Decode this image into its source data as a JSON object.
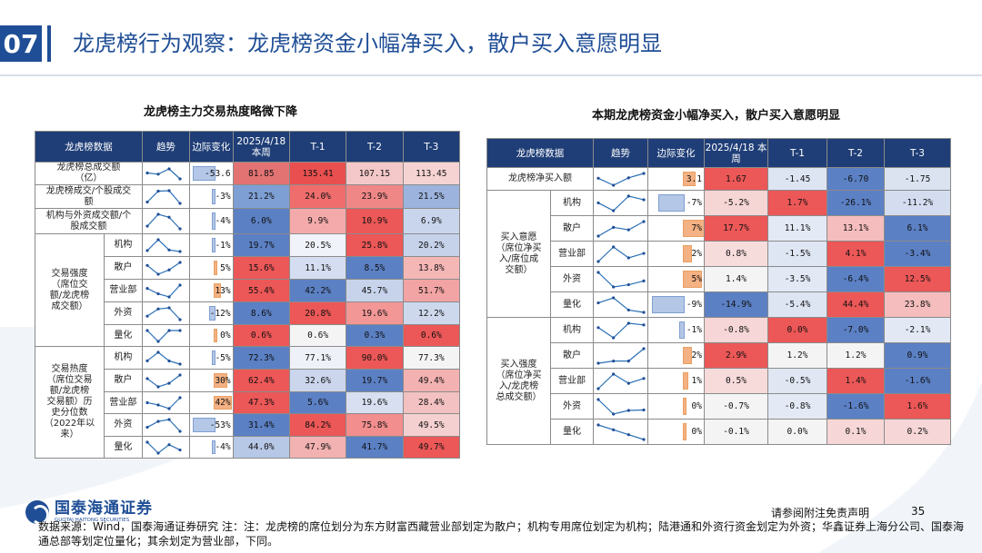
{
  "header": {
    "section_number": "07",
    "title": "龙虎榜行为观察：龙虎榜资金小幅净买入，散户买入意愿明显"
  },
  "colors": {
    "navy": "#1f3e77",
    "brand_blue": "#1f4e96"
  },
  "left": {
    "title": "龙虎榜主力交易热度略微下降",
    "headers": [
      "龙虎榜数据",
      "趋势",
      "边际变化",
      "2025/4/18\n本周",
      "T-1",
      "T-2",
      "T-3"
    ],
    "groups": [
      {
        "label": "交易强度\n（席位交\n额/龙虎榜\n成交额）",
        "first": 3,
        "span": 5
      },
      {
        "label": "交易热度\n（席位交易\n额/龙虎榜\n交易额）历\n史分位数\n（2022年以\n来）",
        "first": 8,
        "span": 5
      }
    ],
    "rows": [
      {
        "label": "龙虎榜总成交额\n（亿）",
        "margin": "-53.6",
        "m": -53.6,
        "vals": [
          "81.85",
          "135.41",
          "107.15",
          "113.45"
        ],
        "cols": [
          "#e37373",
          "#e94f4f",
          "#f4c8c8",
          "#f6d3d3"
        ],
        "trend": [
          81.85,
          135.41,
          107.15,
          113.45
        ]
      },
      {
        "label": "龙虎榜成交/个股成交\n额",
        "margin": "-3%",
        "m": -3,
        "vals": [
          "21.2%",
          "24.0%",
          "23.9%",
          "21.5%"
        ],
        "cols": [
          "#7e9fd4",
          "#ef6d6d",
          "#f08787",
          "#9cb4dd"
        ],
        "trend": [
          21.2,
          24.0,
          23.9,
          21.5
        ]
      },
      {
        "label": "机构与外资成交额/个\n股成交额",
        "margin": "-4%",
        "m": -4,
        "vals": [
          "6.0%",
          "9.9%",
          "10.9%",
          "6.9%"
        ],
        "cols": [
          "#5b80c4",
          "#f4aaaa",
          "#ec5757",
          "#c9d5ec"
        ],
        "trend": [
          6.0,
          9.9,
          10.9,
          6.9
        ]
      },
      {
        "label": "机构",
        "margin": "-1%",
        "m": -1,
        "vals": [
          "19.7%",
          "20.5%",
          "25.8%",
          "20.2%"
        ],
        "cols": [
          "#5b80c4",
          "#f0f3f9",
          "#ec5757",
          "#c5d2ea"
        ],
        "trend": [
          19.7,
          20.5,
          25.8,
          20.2
        ]
      },
      {
        "label": "散户",
        "margin": "5%",
        "m": 5,
        "vals": [
          "15.6%",
          "11.1%",
          "8.5%",
          "13.8%"
        ],
        "cols": [
          "#ec5757",
          "#d5def0",
          "#5b80c4",
          "#f5b6b6"
        ],
        "trend": [
          15.6,
          11.1,
          8.5,
          13.8
        ]
      },
      {
        "label": "营业部",
        "margin": "13%",
        "m": 13,
        "vals": [
          "55.4%",
          "42.2%",
          "45.7%",
          "51.7%"
        ],
        "cols": [
          "#ec5757",
          "#5b80c4",
          "#c7d3ea",
          "#f2a3a3"
        ],
        "trend": [
          55.4,
          42.2,
          45.7,
          51.7
        ]
      },
      {
        "label": "外资",
        "margin": "-12%",
        "m": -12,
        "vals": [
          "8.6%",
          "20.8%",
          "19.6%",
          "12.2%"
        ],
        "cols": [
          "#5b80c4",
          "#ec5757",
          "#f29696",
          "#cdd8ed"
        ],
        "trend": [
          8.6,
          20.8,
          19.6,
          12.2
        ]
      },
      {
        "label": "量化",
        "margin": "0%",
        "m": 0,
        "vals": [
          "0.6%",
          "0.6%",
          "0.3%",
          "0.6%"
        ],
        "cols": [
          "#ec5757",
          "#f4f4f4",
          "#5b80c4",
          "#ec5757"
        ],
        "trend": [
          0.6,
          0.6,
          0.3,
          0.6
        ]
      },
      {
        "label": "机构",
        "margin": "-5%",
        "m": -5,
        "vals": [
          "72.3%",
          "77.1%",
          "90.0%",
          "77.3%"
        ],
        "cols": [
          "#5b80c4",
          "#eef2f8",
          "#ec5757",
          "#f4f4f4"
        ],
        "trend": [
          72.3,
          77.1,
          90.0,
          77.3
        ]
      },
      {
        "label": "散户",
        "margin": "30%",
        "m": 30,
        "vals": [
          "62.4%",
          "32.6%",
          "19.7%",
          "49.4%"
        ],
        "cols": [
          "#ec5757",
          "#cbd6ec",
          "#5b80c4",
          "#f3b1b1"
        ],
        "trend": [
          62.4,
          32.6,
          19.7,
          49.4
        ]
      },
      {
        "label": "营业部",
        "margin": "42%",
        "m": 42,
        "vals": [
          "47.3%",
          "5.6%",
          "19.6%",
          "28.4%"
        ],
        "cols": [
          "#ec5757",
          "#5b80c4",
          "#d7dff0",
          "#f3c1c1"
        ],
        "trend": [
          47.3,
          5.6,
          19.6,
          28.4
        ]
      },
      {
        "label": "外资",
        "margin": "-53%",
        "m": -53,
        "vals": [
          "31.4%",
          "84.2%",
          "75.8%",
          "49.5%"
        ],
        "cols": [
          "#5b80c4",
          "#ec5757",
          "#f28e8e",
          "#f4d0d0"
        ],
        "trend": [
          31.4,
          84.2,
          75.8,
          49.5
        ]
      },
      {
        "label": "量化",
        "margin": "-4%",
        "m": -4,
        "vals": [
          "44.0%",
          "47.9%",
          "41.7%",
          "49.7%"
        ],
        "cols": [
          "#b7c7e6",
          "#f2b2b2",
          "#5b80c4",
          "#ec5757"
        ],
        "trend": [
          44.0,
          47.9,
          41.7,
          49.7
        ]
      }
    ]
  },
  "right": {
    "title": "本期龙虎榜资金小幅净买入，散户买入意愿明显",
    "headers": [
      "龙虎榜数据",
      "趋势",
      "边际变化",
      "2025/4/18\n本周",
      "T-1",
      "T-2",
      "T-3"
    ],
    "groups": [
      {
        "label": "买入意愿\n（席位净买\n入/席位成\n交额）",
        "first": 1,
        "span": 5
      },
      {
        "label": "买入强度\n（席位净买\n入/龙虎榜\n总成交额）",
        "first": 6,
        "span": 5
      }
    ],
    "rows": [
      {
        "label": "龙虎榜净买入额",
        "margin": "3.1",
        "m": 3.1,
        "vals": [
          "1.67",
          "-1.45",
          "-6.70",
          "-1.75"
        ],
        "cols": [
          "#ec5757",
          "#dde4f2",
          "#5b80c4",
          "#dbe3f1"
        ],
        "trend": [
          1.67,
          -1.45,
          -6.7,
          -1.75
        ]
      },
      {
        "label": "机构",
        "margin": "-7%",
        "m": -7,
        "vals": [
          "-5.2%",
          "1.7%",
          "-26.1%",
          "-11.2%"
        ],
        "cols": [
          "#f6d5d5",
          "#ec5757",
          "#5b80c4",
          "#d4dcef"
        ],
        "trend": [
          -5.2,
          1.7,
          -26.1,
          -11.2
        ]
      },
      {
        "label": "散户",
        "margin": "7%",
        "m": 7,
        "vals": [
          "17.7%",
          "11.1%",
          "13.1%",
          "6.1%"
        ],
        "cols": [
          "#ec5757",
          "#e3e9f5",
          "#f5bdbd",
          "#5b80c4"
        ],
        "trend": [
          17.7,
          11.1,
          13.1,
          6.1
        ]
      },
      {
        "label": "营业部",
        "margin": "2%",
        "m": 2,
        "vals": [
          "0.8%",
          "-1.5%",
          "4.1%",
          "-3.4%"
        ],
        "cols": [
          "#f7dcdc",
          "#dfe6f3",
          "#ec5757",
          "#5b80c4"
        ],
        "trend": [
          0.8,
          -1.5,
          4.1,
          -3.4
        ]
      },
      {
        "label": "外资",
        "margin": "5%",
        "m": 5,
        "vals": [
          "1.4%",
          "-3.5%",
          "-6.4%",
          "12.5%"
        ],
        "cols": [
          "#f4f4f4",
          "#e2e8f4",
          "#5b80c4",
          "#ec5757"
        ],
        "trend": [
          1.4,
          -3.5,
          -6.4,
          12.5
        ]
      },
      {
        "label": "量化",
        "margin": "-9%",
        "m": -9,
        "vals": [
          "-14.9%",
          "-5.4%",
          "44.4%",
          "23.8%"
        ],
        "cols": [
          "#5b80c4",
          "#dde4f2",
          "#ec5757",
          "#f5bdbd"
        ],
        "trend": [
          -14.9,
          -5.4,
          44.4,
          23.8
        ]
      },
      {
        "label": "机构",
        "margin": "-1%",
        "m": -1,
        "vals": [
          "-0.8%",
          "0.0%",
          "-7.0%",
          "-2.1%"
        ],
        "cols": [
          "#f6d6d6",
          "#ec5757",
          "#5b80c4",
          "#e2e8f4"
        ],
        "trend": [
          -0.8,
          0.0,
          -7.0,
          -2.1
        ]
      },
      {
        "label": "散户",
        "margin": "2%",
        "m": 2,
        "vals": [
          "2.9%",
          "1.2%",
          "1.2%",
          "0.9%"
        ],
        "cols": [
          "#ec5757",
          "#f4f4f4",
          "#f4f4f4",
          "#5b80c4"
        ],
        "trend": [
          2.9,
          1.2,
          1.2,
          0.9
        ]
      },
      {
        "label": "营业部",
        "margin": "1%",
        "m": 1,
        "vals": [
          "0.5%",
          "-0.5%",
          "1.4%",
          "-1.6%"
        ],
        "cols": [
          "#f7dada",
          "#e0e7f3",
          "#ec5757",
          "#5b80c4"
        ],
        "trend": [
          0.5,
          -0.5,
          1.4,
          -1.6
        ]
      },
      {
        "label": "外资",
        "margin": "0%",
        "m": 0,
        "vals": [
          "-0.7%",
          "-0.8%",
          "-1.6%",
          "1.6%"
        ],
        "cols": [
          "#f4f4f4",
          "#e3e9f5",
          "#5b80c4",
          "#ec5757"
        ],
        "trend": [
          -0.7,
          -0.8,
          -1.6,
          1.6
        ]
      },
      {
        "label": "量化",
        "margin": "0%",
        "m": 0,
        "vals": [
          "-0.1%",
          "0.0%",
          "0.1%",
          "0.2%"
        ],
        "cols": [
          "#f4f4f4",
          "#f4f4f4",
          "#f6d6d6",
          "#f6d6d6"
        ],
        "trend": [
          -0.1,
          0.0,
          0.1,
          0.2
        ]
      }
    ]
  },
  "footer": {
    "logo_cn": "国泰海通证券",
    "logo_en": "GUOTAI HAITONG SECURITIES",
    "disclaimer": "请参阅附注免责声明",
    "page": "35",
    "source": "数据来源：Wind，国泰海通证券研究 注：注：龙虎榜的席位划分为东方财富西藏营业部划定为散户；机构专用席位划定为机构；陆港通和外资行资金划定为外资；华鑫证券上海分公司、国泰海通总部等划定位量化；其余划定为营业部，下同。"
  }
}
